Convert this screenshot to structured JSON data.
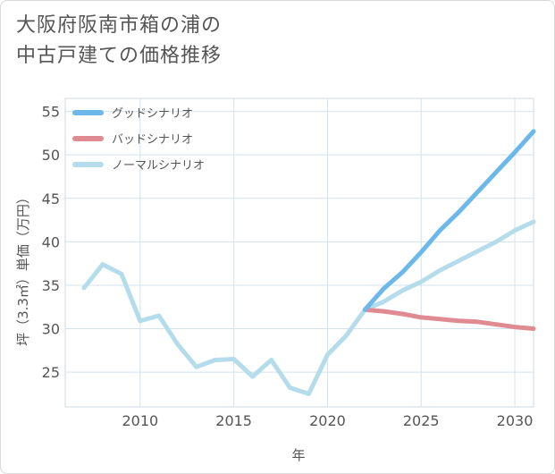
{
  "page": {
    "title_line1": "大阪府阪南市箱の浦の",
    "title_line2": "中古戸建ての価格推移"
  },
  "chart_data": {
    "type": "line",
    "title": "大阪府阪南市箱の浦の中古戸建ての価格推移",
    "xlabel": "年",
    "ylabel": "坪（3.3㎡）単価（万円）",
    "xlim": [
      2006,
      2031
    ],
    "ylim": [
      21,
      56.5
    ],
    "x_ticks": [
      2010,
      2015,
      2020,
      2025,
      2030
    ],
    "y_ticks": [
      25,
      30,
      35,
      40,
      45,
      50,
      55
    ],
    "grid": true,
    "legend_position": "top-left",
    "series": [
      {
        "name": "グッドシナリオ",
        "color": "#6cb8ea",
        "x": [
          2022,
          2023,
          2024,
          2025,
          2026,
          2027,
          2028,
          2029,
          2030,
          2031
        ],
        "values": [
          32.2,
          34.6,
          36.5,
          38.8,
          41.3,
          43.4,
          45.7,
          48.0,
          50.3,
          52.7
        ]
      },
      {
        "name": "バッドシナリオ",
        "color": "#e08a92",
        "x": [
          2022,
          2023,
          2024,
          2025,
          2026,
          2027,
          2028,
          2029,
          2030,
          2031
        ],
        "values": [
          32.2,
          32.0,
          31.7,
          31.3,
          31.1,
          30.9,
          30.8,
          30.5,
          30.2,
          30.0
        ]
      },
      {
        "name": "ノーマルシナリオ",
        "color": "#b5dcea",
        "x": [
          2007,
          2008,
          2009,
          2010,
          2011,
          2012,
          2013,
          2014,
          2015,
          2016,
          2017,
          2018,
          2019,
          2020,
          2021,
          2022,
          2023,
          2024,
          2025,
          2026,
          2027,
          2028,
          2029,
          2030,
          2031
        ],
        "values": [
          34.7,
          37.4,
          36.3,
          30.9,
          31.5,
          28.2,
          25.6,
          26.4,
          26.5,
          24.5,
          26.4,
          23.2,
          22.5,
          27.0,
          29.2,
          32.2,
          33.1,
          34.4,
          35.4,
          36.7,
          37.8,
          38.9,
          40.0,
          41.3,
          42.3
        ]
      }
    ]
  }
}
